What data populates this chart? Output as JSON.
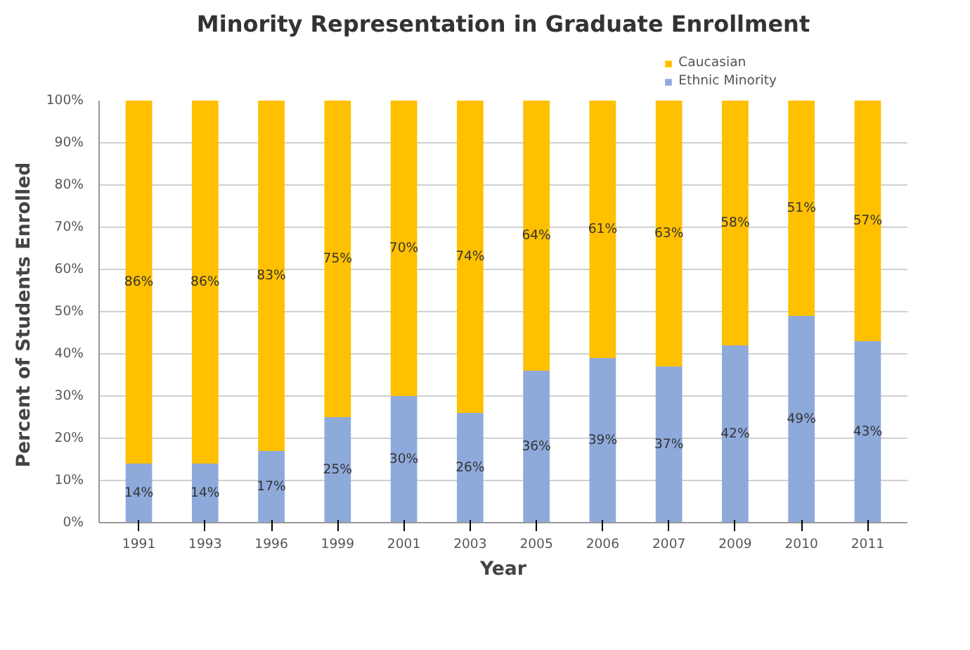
{
  "chart_data": {
    "type": "bar",
    "stacked": true,
    "title": "Minority Representation in Graduate Enrollment",
    "xlabel": "Year",
    "ylabel": "Percent of  Students Enrolled",
    "categories": [
      "1991",
      "1993",
      "1996",
      "1999",
      "2001",
      "2003",
      "2005",
      "2006",
      "2007",
      "2009",
      "2010",
      "2011"
    ],
    "series": [
      {
        "name": "Ethnic Minority",
        "color": "#8eaadb",
        "values": [
          14,
          14,
          17,
          25,
          30,
          26,
          36,
          39,
          37,
          42,
          49,
          43
        ],
        "value_labels": [
          "14%",
          "14%",
          "17%",
          "25%",
          "30%",
          "26%",
          "36%",
          "39%",
          "37%",
          "42%",
          "49%",
          "43%"
        ]
      },
      {
        "name": "Caucasian",
        "color": "#ffc000",
        "values": [
          86,
          86,
          83,
          75,
          70,
          74,
          64,
          61,
          63,
          58,
          51,
          57
        ],
        "value_labels": [
          "86%",
          "86%",
          "83%",
          "75%",
          "70%",
          "74%",
          "64%",
          "61%",
          "63%",
          "58%",
          "51%",
          "57%"
        ]
      }
    ],
    "ylim": [
      0,
      100
    ],
    "yticks": [
      {
        "value": 0,
        "label": "0%"
      },
      {
        "value": 10,
        "label": "10%"
      },
      {
        "value": 20,
        "label": "20%"
      },
      {
        "value": 30,
        "label": "30%"
      },
      {
        "value": 40,
        "label": "40%"
      },
      {
        "value": 50,
        "label": "50%"
      },
      {
        "value": 60,
        "label": "60%"
      },
      {
        "value": 70,
        "label": "70%"
      },
      {
        "value": 80,
        "label": "80%"
      },
      {
        "value": 90,
        "label": "90%"
      },
      {
        "value": 100,
        "label": "100%"
      }
    ],
    "grid": "y",
    "legend": "top right"
  }
}
